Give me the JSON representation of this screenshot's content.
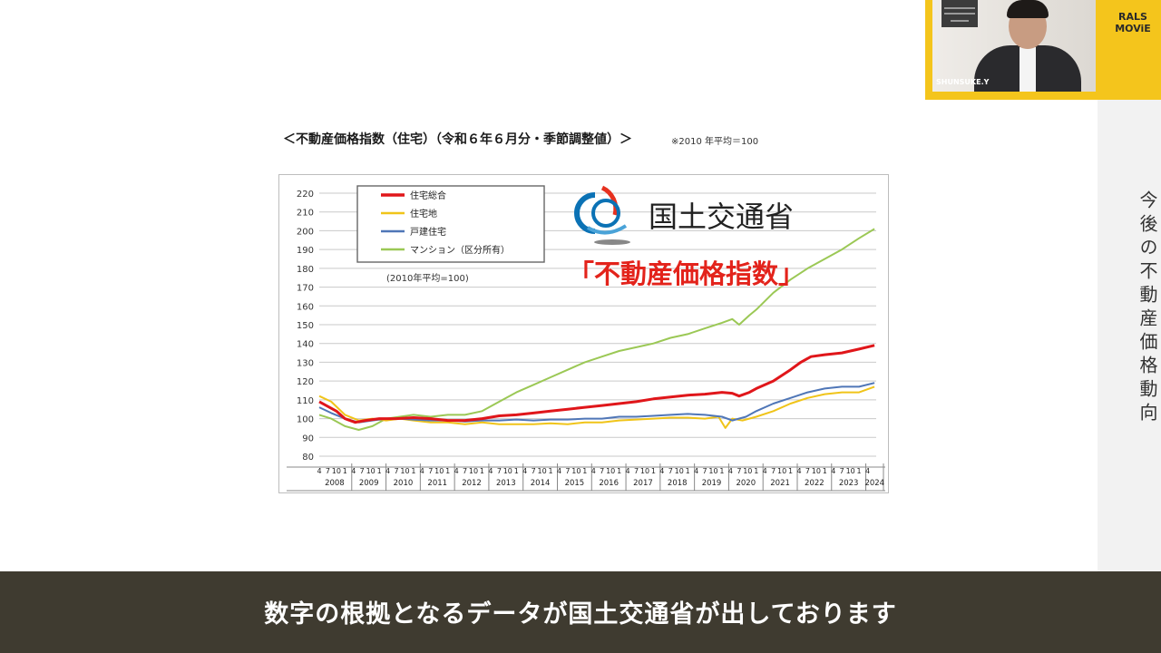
{
  "slide": {
    "heading": "＜不動産価格指数（住宅）（令和６年６月分・季節調整値）＞",
    "note": "※2010 年平均＝100"
  },
  "sidebar": {
    "title": "今後の不動産価格動向"
  },
  "webcam": {
    "name": "SHUNSUKE.Y",
    "brand_line1": "RALS",
    "brand_line2": "MOViE"
  },
  "caption": {
    "text": "数字の根拠となるデータが国土交通省が出しております"
  },
  "logo": {
    "text": "国土交通省",
    "color_red": "#e6311f",
    "color_blue": "#0b72b5"
  },
  "overlay": {
    "text": "「不動産価格指数」",
    "color": "#e3231b"
  },
  "chart_data": {
    "type": "line",
    "ylim": [
      80,
      220
    ],
    "yticks": [
      80,
      90,
      100,
      110,
      120,
      130,
      140,
      150,
      160,
      170,
      180,
      190,
      200,
      210,
      220
    ],
    "xlim": [
      2008.25,
      2024.5
    ],
    "x_month_ticks": [
      "4",
      "7",
      "10",
      "1"
    ],
    "years": [
      "2008",
      "2009",
      "2010",
      "2011",
      "2012",
      "2013",
      "2014",
      "2015",
      "2016",
      "2017",
      "2018",
      "2019",
      "2020",
      "2021",
      "2022",
      "2023",
      "2024"
    ],
    "last_month_label": "4",
    "legend_note": "(2010年平均=100)",
    "grid": true,
    "legend_position": "top-left",
    "series": [
      {
        "name": "住宅総合",
        "color": "#e0161a",
        "width": 3,
        "points": [
          [
            2008.25,
            109
          ],
          [
            2008.75,
            104
          ],
          [
            2009.0,
            100
          ],
          [
            2009.3,
            98
          ],
          [
            2009.6,
            99
          ],
          [
            2010.0,
            100
          ],
          [
            2010.5,
            100
          ],
          [
            2011.0,
            100.5
          ],
          [
            2011.5,
            100
          ],
          [
            2012.0,
            99
          ],
          [
            2012.5,
            99
          ],
          [
            2013.0,
            100
          ],
          [
            2013.5,
            101.5
          ],
          [
            2014.0,
            102
          ],
          [
            2014.5,
            103
          ],
          [
            2015.0,
            104
          ],
          [
            2015.5,
            105
          ],
          [
            2016.0,
            106
          ],
          [
            2016.5,
            107
          ],
          [
            2017.0,
            108
          ],
          [
            2017.5,
            109
          ],
          [
            2018.0,
            110.5
          ],
          [
            2018.5,
            111.5
          ],
          [
            2019.0,
            112.5
          ],
          [
            2019.5,
            113
          ],
          [
            2020.0,
            114
          ],
          [
            2020.3,
            113.5
          ],
          [
            2020.5,
            112
          ],
          [
            2020.8,
            114
          ],
          [
            2021.0,
            116
          ],
          [
            2021.5,
            120
          ],
          [
            2022.0,
            126
          ],
          [
            2022.3,
            130
          ],
          [
            2022.6,
            133
          ],
          [
            2023.0,
            134
          ],
          [
            2023.5,
            135
          ],
          [
            2024.0,
            137
          ],
          [
            2024.45,
            139
          ]
        ]
      },
      {
        "name": "住宅地",
        "color": "#f0c419",
        "width": 2,
        "points": [
          [
            2008.25,
            112
          ],
          [
            2008.6,
            109
          ],
          [
            2009.0,
            102
          ],
          [
            2009.4,
            99
          ],
          [
            2009.8,
            100
          ],
          [
            2010.2,
            99
          ],
          [
            2010.6,
            100
          ],
          [
            2011.0,
            99
          ],
          [
            2011.5,
            98
          ],
          [
            2012.0,
            98
          ],
          [
            2012.5,
            97
          ],
          [
            2013.0,
            98
          ],
          [
            2013.5,
            97
          ],
          [
            2014.0,
            97
          ],
          [
            2014.5,
            97
          ],
          [
            2015.0,
            97.5
          ],
          [
            2015.5,
            97
          ],
          [
            2016.0,
            98
          ],
          [
            2016.5,
            98
          ],
          [
            2017.0,
            99
          ],
          [
            2017.5,
            99.5
          ],
          [
            2018.0,
            100
          ],
          [
            2018.5,
            100.5
          ],
          [
            2019.0,
            100.5
          ],
          [
            2019.5,
            100
          ],
          [
            2019.9,
            101
          ],
          [
            2020.1,
            95
          ],
          [
            2020.3,
            100
          ],
          [
            2020.6,
            99
          ],
          [
            2021.0,
            101
          ],
          [
            2021.5,
            104
          ],
          [
            2022.0,
            108
          ],
          [
            2022.5,
            111
          ],
          [
            2023.0,
            113
          ],
          [
            2023.5,
            114
          ],
          [
            2024.0,
            114
          ],
          [
            2024.45,
            117
          ]
        ]
      },
      {
        "name": "戸建住宅",
        "color": "#4f76b7",
        "width": 2,
        "points": [
          [
            2008.25,
            106
          ],
          [
            2008.6,
            103
          ],
          [
            2009.0,
            100
          ],
          [
            2009.4,
            98
          ],
          [
            2009.8,
            99
          ],
          [
            2010.2,
            100
          ],
          [
            2010.6,
            100
          ],
          [
            2011.0,
            99.5
          ],
          [
            2011.5,
            99
          ],
          [
            2012.0,
            99
          ],
          [
            2012.5,
            98.5
          ],
          [
            2013.0,
            99
          ],
          [
            2013.5,
            99
          ],
          [
            2014.0,
            99.5
          ],
          [
            2014.5,
            99
          ],
          [
            2015.0,
            99.5
          ],
          [
            2015.5,
            99.5
          ],
          [
            2016.0,
            100
          ],
          [
            2016.5,
            100
          ],
          [
            2017.0,
            101
          ],
          [
            2017.5,
            101
          ],
          [
            2018.0,
            101.5
          ],
          [
            2018.5,
            102
          ],
          [
            2019.0,
            102.5
          ],
          [
            2019.5,
            102
          ],
          [
            2020.0,
            101
          ],
          [
            2020.3,
            99
          ],
          [
            2020.7,
            101
          ],
          [
            2021.0,
            104
          ],
          [
            2021.5,
            108
          ],
          [
            2022.0,
            111
          ],
          [
            2022.5,
            114
          ],
          [
            2023.0,
            116
          ],
          [
            2023.5,
            117
          ],
          [
            2024.0,
            117
          ],
          [
            2024.45,
            119
          ]
        ]
      },
      {
        "name": "マンション（区分所有）",
        "color": "#9bc855",
        "width": 2,
        "points": [
          [
            2008.25,
            102
          ],
          [
            2008.6,
            100
          ],
          [
            2009.0,
            96
          ],
          [
            2009.4,
            94
          ],
          [
            2009.8,
            96
          ],
          [
            2010.2,
            100
          ],
          [
            2010.6,
            101
          ],
          [
            2011.0,
            102
          ],
          [
            2011.5,
            101
          ],
          [
            2012.0,
            102
          ],
          [
            2012.5,
            102
          ],
          [
            2013.0,
            104
          ],
          [
            2013.5,
            109
          ],
          [
            2014.0,
            114
          ],
          [
            2014.5,
            118
          ],
          [
            2015.0,
            122
          ],
          [
            2015.5,
            126
          ],
          [
            2016.0,
            130
          ],
          [
            2016.5,
            133
          ],
          [
            2017.0,
            136
          ],
          [
            2017.5,
            138
          ],
          [
            2018.0,
            140
          ],
          [
            2018.5,
            143
          ],
          [
            2019.0,
            145
          ],
          [
            2019.5,
            148
          ],
          [
            2020.0,
            151
          ],
          [
            2020.3,
            153
          ],
          [
            2020.5,
            150
          ],
          [
            2020.8,
            155
          ],
          [
            2021.0,
            158
          ],
          [
            2021.5,
            167
          ],
          [
            2022.0,
            174
          ],
          [
            2022.5,
            180
          ],
          [
            2023.0,
            185
          ],
          [
            2023.5,
            190
          ],
          [
            2024.0,
            196
          ],
          [
            2024.45,
            201
          ]
        ]
      }
    ]
  }
}
